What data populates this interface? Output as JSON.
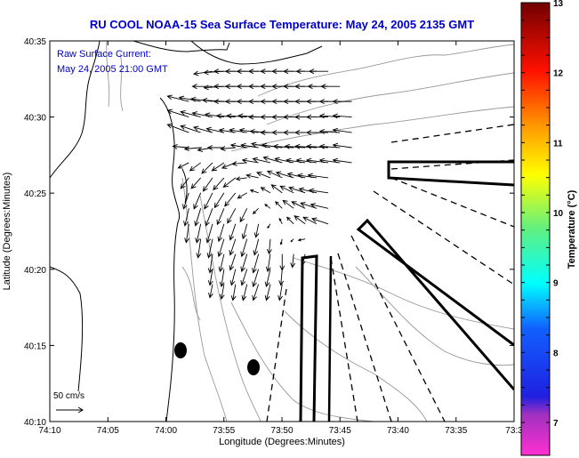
{
  "title": "RU COOL   NOAA-15  Sea Surface Temperature:  May 24, 2005 2135 GMT",
  "annotation": {
    "line1": "Raw Surface Current:",
    "line2": "May 24, 2005 21:00 GMT",
    "scale_label": "50 cm/s"
  },
  "colors": {
    "title": "#0000cc",
    "coast": "#000000",
    "bathy": "#999999"
  },
  "chart_data": {
    "type": "quiver",
    "xlabel": "Longitude (Degrees:Minutes)",
    "ylabel": "Latitude (Degrees:Minutes)",
    "xlim": [
      74.1667,
      73.5
    ],
    "ylim": [
      40.1667,
      40.5833
    ],
    "xticks": [
      {
        "value": 74.1667,
        "label": "74:10"
      },
      {
        "value": 74.0833,
        "label": "74:05"
      },
      {
        "value": 74.0,
        "label": "74:00"
      },
      {
        "value": 73.9167,
        "label": "73:55"
      },
      {
        "value": 73.8333,
        "label": "73:50"
      },
      {
        "value": 73.75,
        "label": "73:45"
      },
      {
        "value": 73.6667,
        "label": "73:40"
      },
      {
        "value": 73.5833,
        "label": "73:35"
      },
      {
        "value": 73.5,
        "label": "73:3"
      }
    ],
    "yticks": [
      {
        "value": 40.5833,
        "label": "40:35"
      },
      {
        "value": 40.5,
        "label": "40:30"
      },
      {
        "value": 40.4167,
        "label": "40:25"
      },
      {
        "value": 40.3333,
        "label": "40:20"
      },
      {
        "value": 40.25,
        "label": "40:15"
      },
      {
        "value": 40.1667,
        "label": "40:10"
      }
    ],
    "reference_vector_cm_s": 50,
    "grid": {
      "lon": [
        73.967,
        73.933,
        73.9,
        73.867,
        73.833,
        73.8,
        73.767,
        73.733
      ],
      "lat": [
        40.55,
        40.517,
        40.483,
        40.45,
        40.417,
        40.383,
        40.35,
        40.317
      ],
      "u": [
        [
          null,
          -35,
          -40,
          -40,
          -40,
          -40,
          -35,
          null
        ],
        [
          -40,
          -40,
          -40,
          -40,
          -40,
          -40,
          -40,
          -35
        ],
        [
          -40,
          -35,
          -30,
          -35,
          -40,
          -40,
          -40,
          -35
        ],
        [
          -20,
          -20,
          -25,
          -30,
          -35,
          -35,
          -40,
          -35
        ],
        [
          -10,
          -15,
          -20,
          -15,
          -20,
          -30,
          -35,
          null
        ],
        [
          -5,
          -10,
          -10,
          -5,
          -5,
          -20,
          -30,
          null
        ],
        [
          null,
          -5,
          -10,
          -10,
          0,
          -5,
          null,
          null
        ],
        [
          null,
          -5,
          -5,
          -10,
          -5,
          null,
          null,
          null
        ]
      ],
      "v": [
        [
          null,
          -5,
          0,
          0,
          0,
          0,
          0,
          null
        ],
        [
          10,
          5,
          0,
          0,
          0,
          0,
          0,
          0
        ],
        [
          15,
          10,
          5,
          5,
          0,
          0,
          0,
          5
        ],
        [
          -10,
          -20,
          -10,
          5,
          10,
          5,
          5,
          5
        ],
        [
          -30,
          -30,
          -25,
          5,
          15,
          10,
          5,
          null
        ],
        [
          -35,
          -35,
          -30,
          -25,
          10,
          15,
          10,
          null
        ],
        [
          null,
          -35,
          -30,
          -35,
          -30,
          -20,
          null,
          null
        ],
        [
          null,
          -25,
          -30,
          -30,
          -30,
          null,
          null,
          null
        ]
      ]
    },
    "colorbar": {
      "label": "Temperature (°C)",
      "range": [
        6.53,
        13
      ],
      "ticks": [
        "7",
        "8",
        "9",
        "10",
        "11",
        "12",
        "13"
      ]
    }
  }
}
